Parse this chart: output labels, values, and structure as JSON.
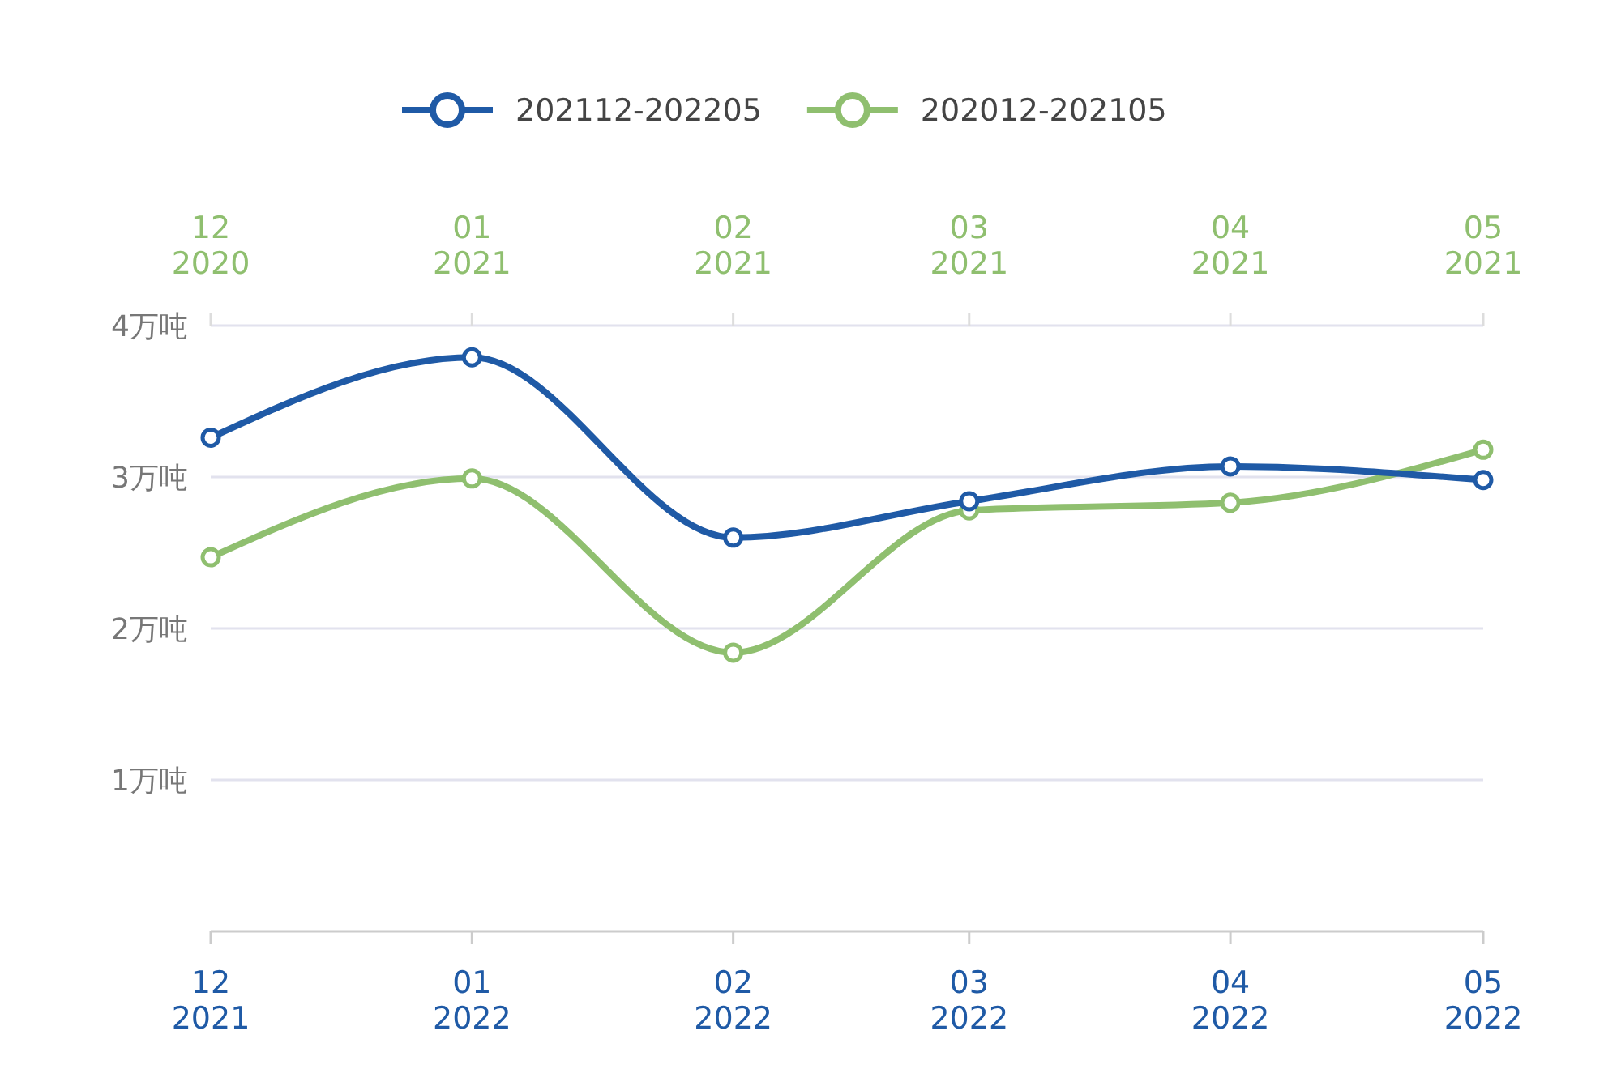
{
  "chart_data": {
    "type": "line",
    "xlim": [
      "2021-12",
      "2022-05"
    ],
    "xticks": [
      {
        "value": "2021-12",
        "label": "12\n2021"
      },
      {
        "value": "2022-01",
        "label": "01\n2022"
      },
      {
        "value": "2022-02",
        "label": "02\n2022"
      },
      {
        "value": "2022-03",
        "label": "03\n2022"
      },
      {
        "value": "2022-04",
        "label": "04\n2022"
      },
      {
        "value": "2022-05",
        "label": "05\n2022"
      }
    ],
    "x2lim": [
      "2020-12",
      "2021-05"
    ],
    "x2ticks": [
      {
        "value": "2020-12",
        "label": "12\n2020"
      },
      {
        "value": "2021-01",
        "label": "01\n2021"
      },
      {
        "value": "2021-02",
        "label": "02\n2021"
      },
      {
        "value": "2021-03",
        "label": "03\n2021"
      },
      {
        "value": "2021-04",
        "label": "04\n2021"
      },
      {
        "value": "2021-05",
        "label": "05\n2021"
      }
    ],
    "ylim": [
      0,
      4
    ],
    "yticks": [
      {
        "value": 1,
        "label": "1万吨"
      },
      {
        "value": 2,
        "label": "2万吨"
      },
      {
        "value": 3,
        "label": "3万吨"
      },
      {
        "value": 4,
        "label": "4万吨"
      }
    ],
    "series": [
      {
        "name": "202112-202205",
        "color": "#1f5aa6",
        "x": [
          "2021-12",
          "2022-01",
          "2022-02",
          "2022-03",
          "2022-04",
          "2022-05"
        ],
        "values": [
          3.26,
          3.79,
          2.6,
          2.84,
          3.07,
          2.98
        ]
      },
      {
        "name": "202012-202105",
        "color": "#8fbf6f",
        "axis": "x2",
        "x": [
          "2020-12",
          "2021-01",
          "2021-02",
          "2021-03",
          "2021-04",
          "2021-05"
        ],
        "values": [
          2.47,
          2.99,
          1.84,
          2.78,
          2.83,
          3.18
        ]
      }
    ],
    "grid": "y",
    "legend": "top",
    "marker": "circle",
    "line_style": "solid"
  }
}
